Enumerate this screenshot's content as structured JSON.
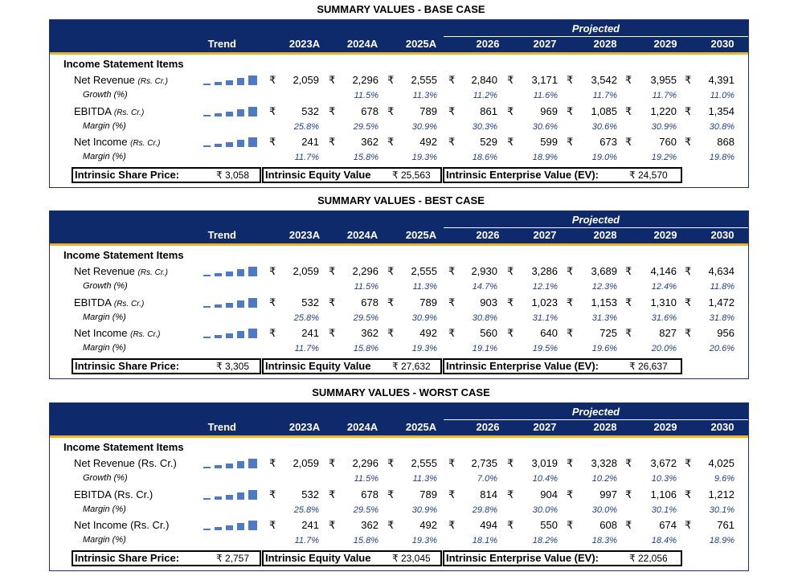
{
  "headers": {
    "trend": "Trend",
    "projected": "Projected",
    "years": [
      "2023A",
      "2024A",
      "2025A",
      "2026",
      "2027",
      "2028",
      "2029",
      "2030"
    ],
    "section": "Income Statement Items",
    "currency": "₹",
    "price_label": "Intrinsic Share Price:",
    "equity_label": "Intrinsic Equity Value",
    "ev_label": "Intrinsic Enterprise Value (EV):"
  },
  "cases": [
    {
      "title": "SUMMARY VALUES - BASE CASE",
      "rows": [
        {
          "label": "Net Revenue",
          "unit": "(Rs. Cr.)",
          "values": [
            "2,059",
            "2,296",
            "2,555",
            "2,840",
            "3,171",
            "3,542",
            "3,955",
            "4,391"
          ],
          "sub": "Growth",
          "sub_unit": "(%)",
          "pcts": [
            "",
            "11.5%",
            "11.3%",
            "11.2%",
            "11.6%",
            "11.7%",
            "11.7%",
            "11.0%"
          ]
        },
        {
          "label": "EBITDA",
          "unit": "(Rs. Cr.)",
          "values": [
            "532",
            "678",
            "789",
            "861",
            "969",
            "1,085",
            "1,220",
            "1,354"
          ],
          "sub": "Margin",
          "sub_unit": "(%)",
          "pcts": [
            "25.8%",
            "29.5%",
            "30.9%",
            "30.3%",
            "30.6%",
            "30.6%",
            "30.9%",
            "30.8%"
          ]
        },
        {
          "label": "Net Income",
          "unit": "(Rs. Cr.)",
          "values": [
            "241",
            "362",
            "492",
            "529",
            "599",
            "673",
            "760",
            "868"
          ],
          "sub": "Margin",
          "sub_unit": "(%)",
          "pcts": [
            "11.7%",
            "15.8%",
            "19.3%",
            "18.6%",
            "18.9%",
            "19.0%",
            "19.2%",
            "19.8%"
          ]
        }
      ],
      "share_price": "₹ 3,058",
      "equity_value": "₹ 25,563",
      "enterprise_value": "₹ 24,570"
    },
    {
      "title": "SUMMARY VALUES - BEST CASE",
      "rows": [
        {
          "label": "Net Revenue",
          "unit": "(Rs. Cr.)",
          "values": [
            "2,059",
            "2,296",
            "2,555",
            "2,930",
            "3,286",
            "3,689",
            "4,146",
            "4,634"
          ],
          "sub": "Growth",
          "sub_unit": "(%)",
          "pcts": [
            "",
            "11.5%",
            "11.3%",
            "14.7%",
            "12.1%",
            "12.3%",
            "12.4%",
            "11.8%"
          ]
        },
        {
          "label": "EBITDA",
          "unit": "(Rs. Cr.)",
          "values": [
            "532",
            "678",
            "789",
            "903",
            "1,023",
            "1,153",
            "1,310",
            "1,472"
          ],
          "sub": "Margin",
          "sub_unit": "(%)",
          "pcts": [
            "25.8%",
            "29.5%",
            "30.9%",
            "30.8%",
            "31.1%",
            "31.3%",
            "31.6%",
            "31.8%"
          ]
        },
        {
          "label": "Net Income",
          "unit": "(Rs. Cr.)",
          "values": [
            "241",
            "362",
            "492",
            "560",
            "640",
            "725",
            "827",
            "956"
          ],
          "sub": "Margin",
          "sub_unit": "(%)",
          "pcts": [
            "11.7%",
            "15.8%",
            "19.3%",
            "19.1%",
            "19.5%",
            "19.6%",
            "20.0%",
            "20.6%"
          ]
        }
      ],
      "share_price": "₹ 3,305",
      "equity_value": "₹ 27,632",
      "enterprise_value": "₹ 26,637"
    },
    {
      "title": "SUMMARY VALUES - WORST CASE",
      "rows": [
        {
          "label": "Net Revenue (Rs. Cr.)",
          "unit": "",
          "values": [
            "2,059",
            "2,296",
            "2,555",
            "2,735",
            "3,019",
            "3,328",
            "3,672",
            "4,025"
          ],
          "sub": "Growth (%)",
          "sub_unit": "",
          "pcts": [
            "",
            "11.5%",
            "11.3%",
            "7.0%",
            "10.4%",
            "10.2%",
            "10.3%",
            "9.6%"
          ]
        },
        {
          "label": "EBITDA (Rs. Cr.)",
          "unit": "",
          "values": [
            "532",
            "678",
            "789",
            "814",
            "904",
            "997",
            "1,106",
            "1,212"
          ],
          "sub": "Margin (%)",
          "sub_unit": "",
          "pcts": [
            "25.8%",
            "29.5%",
            "30.9%",
            "29.8%",
            "30.0%",
            "30.0%",
            "30.1%",
            "30.1%"
          ]
        },
        {
          "label": "Net Income (Rs. Cr.)",
          "unit": "",
          "values": [
            "241",
            "362",
            "492",
            "494",
            "550",
            "608",
            "674",
            "761"
          ],
          "sub": "Margin (%)",
          "sub_unit": "",
          "pcts": [
            "11.7%",
            "15.8%",
            "19.3%",
            "18.1%",
            "18.2%",
            "18.3%",
            "18.4%",
            "18.9%"
          ]
        }
      ],
      "share_price": "₹ 2,757",
      "equity_value": "₹ 23,045",
      "enterprise_value": "₹ 22,056"
    }
  ]
}
